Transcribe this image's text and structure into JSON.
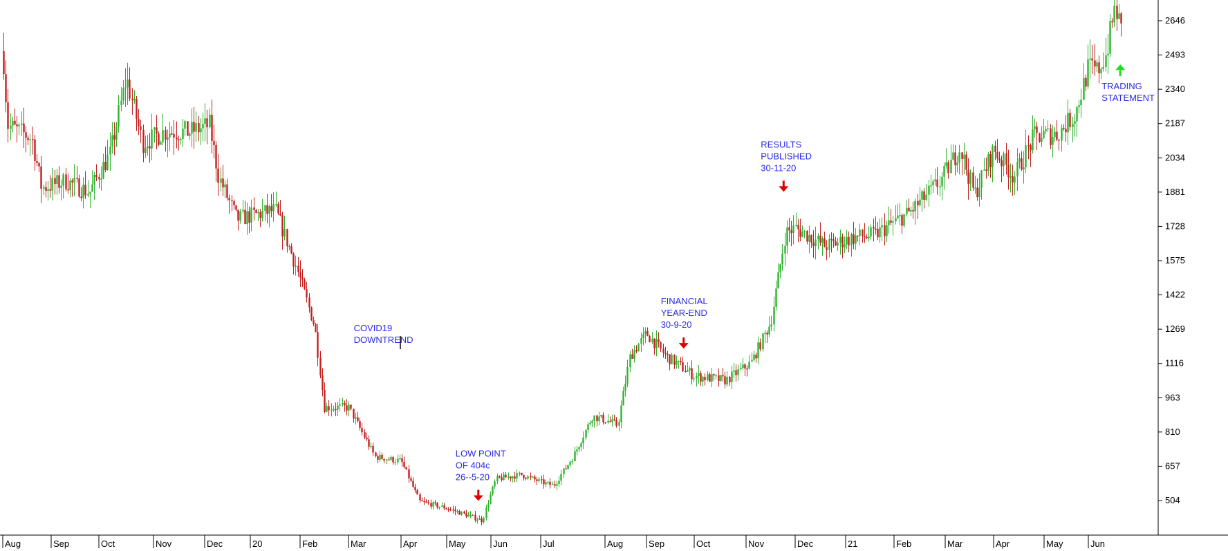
{
  "chart_data": {
    "type": "candlestick",
    "title": "",
    "xlabel": "",
    "ylabel": "",
    "ylim": [
      380,
      2780
    ],
    "y_ticks": [
      504,
      657,
      810,
      963,
      1116,
      1269,
      1422,
      1575,
      1728,
      1881,
      2034,
      2187,
      2340,
      2493,
      2646
    ],
    "x_ticks": [
      {
        "label": "Aug",
        "t": 0.0
      },
      {
        "label": "Sep",
        "t": 1.0
      },
      {
        "label": "Oct",
        "t": 2.0
      },
      {
        "label": "Nov",
        "t": 3.0
      },
      {
        "label": "Dec",
        "t": 4.0
      },
      {
        "label": "20",
        "t": 5.0
      },
      {
        "label": "Feb",
        "t": 6.0
      },
      {
        "label": "Mar",
        "t": 7.0
      },
      {
        "label": "Apr",
        "t": 8.0
      },
      {
        "label": "May",
        "t": 9.0
      },
      {
        "label": "Jun",
        "t": 10.0
      },
      {
        "label": "Jul",
        "t": 11.0
      },
      {
        "label": "Aug",
        "t": 12.0
      },
      {
        "label": "Sep",
        "t": 13.0
      },
      {
        "label": "Oct",
        "t": 14.0
      },
      {
        "label": "Nov",
        "t": 15.0
      },
      {
        "label": "Dec",
        "t": 16.0
      },
      {
        "label": "21",
        "t": 17.0
      },
      {
        "label": "Feb",
        "t": 18.0
      },
      {
        "label": "Mar",
        "t": 19.0
      },
      {
        "label": "Apr",
        "t": 20.0
      },
      {
        "label": "May",
        "t": 21.0
      },
      {
        "label": "Jun",
        "t": 22.0
      }
    ],
    "x_range": [
      0,
      23.1
    ],
    "price_path": [
      {
        "t": 0.0,
        "v": 2510
      },
      {
        "t": 0.1,
        "v": 2180
      },
      {
        "t": 0.6,
        "v": 2120
      },
      {
        "t": 0.8,
        "v": 1900
      },
      {
        "t": 1.3,
        "v": 1930
      },
      {
        "t": 1.8,
        "v": 1880
      },
      {
        "t": 2.2,
        "v": 2050
      },
      {
        "t": 2.5,
        "v": 2390
      },
      {
        "t": 2.8,
        "v": 2100
      },
      {
        "t": 3.2,
        "v": 2150
      },
      {
        "t": 3.7,
        "v": 2150
      },
      {
        "t": 4.1,
        "v": 2180
      },
      {
        "t": 4.3,
        "v": 1950
      },
      {
        "t": 4.7,
        "v": 1760
      },
      {
        "t": 5.1,
        "v": 1780
      },
      {
        "t": 5.5,
        "v": 1800
      },
      {
        "t": 5.9,
        "v": 1560
      },
      {
        "t": 6.3,
        "v": 1280
      },
      {
        "t": 6.5,
        "v": 920
      },
      {
        "t": 7.0,
        "v": 920
      },
      {
        "t": 7.5,
        "v": 700
      },
      {
        "t": 8.0,
        "v": 680
      },
      {
        "t": 8.4,
        "v": 500
      },
      {
        "t": 9.0,
        "v": 470
      },
      {
        "t": 9.8,
        "v": 415
      },
      {
        "t": 10.1,
        "v": 600
      },
      {
        "t": 10.6,
        "v": 620
      },
      {
        "t": 11.2,
        "v": 570
      },
      {
        "t": 11.5,
        "v": 700
      },
      {
        "t": 11.8,
        "v": 880
      },
      {
        "t": 12.3,
        "v": 840
      },
      {
        "t": 12.6,
        "v": 1150
      },
      {
        "t": 13.0,
        "v": 1250
      },
      {
        "t": 13.4,
        "v": 1150
      },
      {
        "t": 14.0,
        "v": 1060
      },
      {
        "t": 14.6,
        "v": 1040
      },
      {
        "t": 15.1,
        "v": 1120
      },
      {
        "t": 15.5,
        "v": 1300
      },
      {
        "t": 15.8,
        "v": 1700
      },
      {
        "t": 16.0,
        "v": 1720
      },
      {
        "t": 16.6,
        "v": 1640
      },
      {
        "t": 17.2,
        "v": 1680
      },
      {
        "t": 17.6,
        "v": 1690
      },
      {
        "t": 18.3,
        "v": 1790
      },
      {
        "t": 18.9,
        "v": 1930
      },
      {
        "t": 19.3,
        "v": 2080
      },
      {
        "t": 19.6,
        "v": 1870
      },
      {
        "t": 20.0,
        "v": 2070
      },
      {
        "t": 20.4,
        "v": 1950
      },
      {
        "t": 20.8,
        "v": 2130
      },
      {
        "t": 21.3,
        "v": 2140
      },
      {
        "t": 21.7,
        "v": 2230
      },
      {
        "t": 22.0,
        "v": 2440
      },
      {
        "t": 22.2,
        "v": 2420
      },
      {
        "t": 22.4,
        "v": 2500
      },
      {
        "t": 22.6,
        "v": 2710
      },
      {
        "t": 22.75,
        "v": 2590
      }
    ],
    "annotations": [
      {
        "lines": [
          "COVID19",
          "DOWNTREND"
        ],
        "t": 7.1,
        "v": 1260
      },
      {
        "lines": [
          "LOW POINT",
          "OF 404c",
          "26--5-20"
        ],
        "t": 9.2,
        "v": 700,
        "arrow": "down"
      },
      {
        "lines": [
          "FINANCIAL",
          "YEAR-END",
          "30-9-20"
        ],
        "t": 13.3,
        "v": 1380,
        "arrow": "down"
      },
      {
        "lines": [
          "RESULTS",
          "PUBLISHED",
          "30-11-20"
        ],
        "t": 15.3,
        "v": 2080,
        "arrow": "down"
      },
      {
        "lines": [
          "TRADING",
          "STATEMENT"
        ],
        "t": 22.3,
        "v": 2340,
        "arrow": "up"
      }
    ],
    "colors": {
      "up": "#2db32d",
      "down": "#c41e1e",
      "note_text": "#2a2ae6",
      "note_arrow_down": "#e00000",
      "note_arrow_up": "#22dd22",
      "axis": "#000000"
    },
    "seed": 7
  }
}
